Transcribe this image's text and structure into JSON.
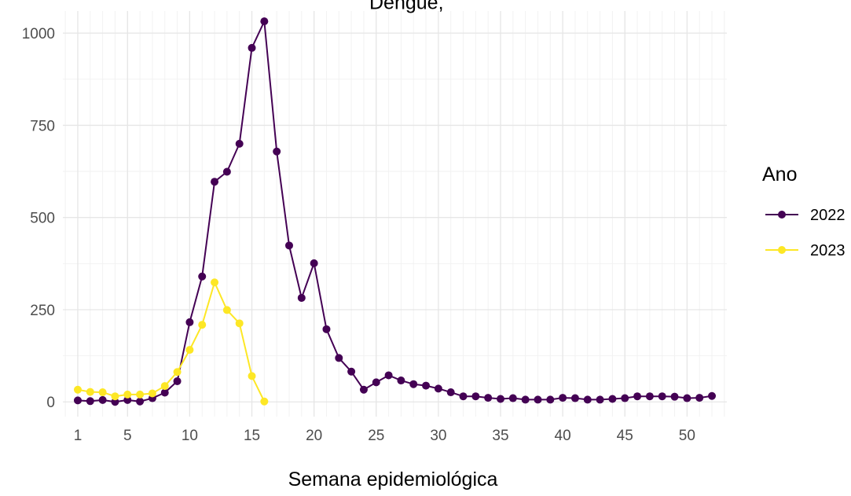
{
  "chart_data": {
    "type": "line",
    "title": "Dengue, ",
    "xlabel": "Semana epidemiológica",
    "ylabel": "",
    "x_ticks": [
      1,
      5,
      10,
      15,
      20,
      25,
      30,
      35,
      40,
      45,
      50
    ],
    "y_ticks": [
      0,
      250,
      500,
      750,
      1000
    ],
    "xlim": [
      -0.2,
      53.2
    ],
    "ylim": [
      -40,
      1060
    ],
    "grid": true,
    "legend": {
      "title": "Ano",
      "position": "right"
    },
    "series": [
      {
        "name": "2022",
        "color": "#440154",
        "x": [
          1,
          2,
          3,
          4,
          5,
          6,
          7,
          8,
          9,
          10,
          11,
          12,
          13,
          14,
          15,
          16,
          17,
          18,
          19,
          20,
          21,
          22,
          23,
          24,
          25,
          26,
          27,
          28,
          29,
          30,
          31,
          32,
          33,
          34,
          35,
          36,
          37,
          38,
          39,
          40,
          41,
          42,
          43,
          44,
          45,
          46,
          47,
          48,
          49,
          50,
          51,
          52
        ],
        "values": [
          4,
          2,
          5,
          0,
          5,
          1,
          10,
          25,
          56,
          216,
          340,
          597,
          624,
          700,
          960,
          1032,
          679,
          424,
          282,
          376,
          197,
          119,
          82,
          33,
          53,
          72,
          58,
          48,
          44,
          36,
          26,
          15,
          15,
          11,
          8,
          10,
          6,
          6,
          6,
          11,
          10,
          6,
          6,
          8,
          10,
          15,
          15,
          15,
          14,
          10,
          11,
          16
        ]
      },
      {
        "name": "2023",
        "color": "#fde725",
        "x": [
          1,
          2,
          3,
          4,
          5,
          6,
          7,
          8,
          9,
          10,
          11,
          12,
          13,
          14,
          15,
          16
        ],
        "values": [
          33,
          27,
          26,
          15,
          20,
          20,
          23,
          43,
          81,
          141,
          209,
          324,
          249,
          213,
          70,
          1
        ]
      }
    ]
  }
}
